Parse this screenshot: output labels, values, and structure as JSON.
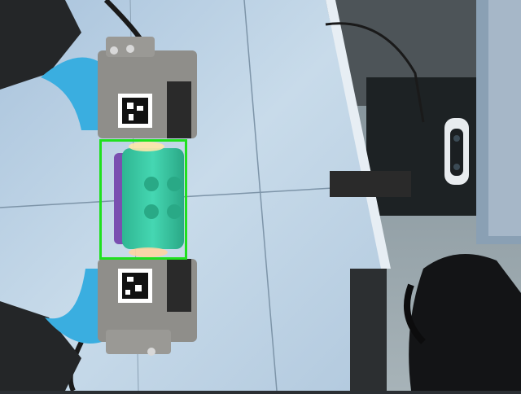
{
  "scene": {
    "description_colors": {
      "table": "#b9d0e3",
      "floor": "#9aa8b0",
      "gripper": "#8f8e8a",
      "gripper_pad": "#3aaee0",
      "brick_green": "#35c6a0",
      "brick_purple": "#7a4fb0",
      "box": "#1fe01f"
    }
  },
  "detection": {
    "color": "#1fe01f"
  }
}
